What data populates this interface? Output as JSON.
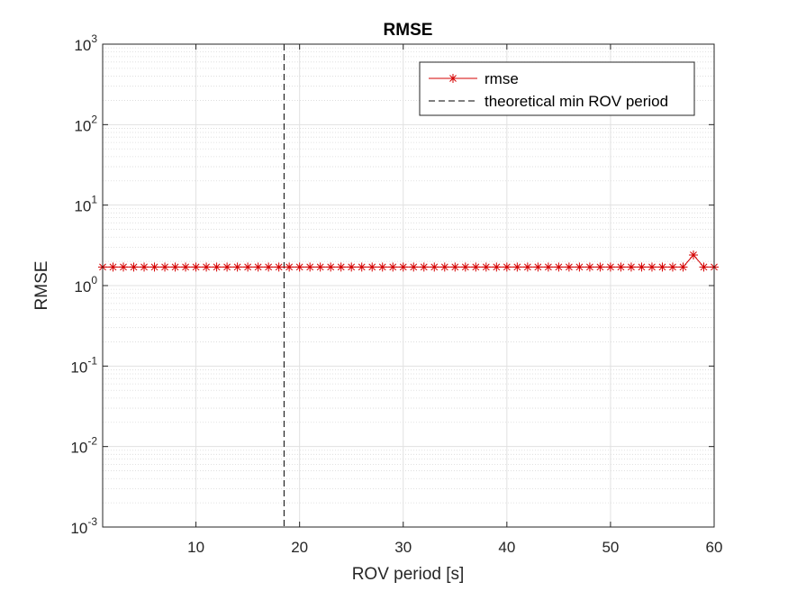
{
  "chart_data": {
    "type": "line",
    "title": "RMSE",
    "xlabel": "ROV period [s]",
    "ylabel": "RMSE",
    "xlim": [
      1,
      60
    ],
    "ylim": [
      0.001,
      1000
    ],
    "yscale": "log",
    "grid": true,
    "minor_grid": true,
    "legend_location": "top-right",
    "x_ticks": [
      10,
      20,
      30,
      40,
      50,
      60
    ],
    "y_ticks": [
      {
        "base": "10",
        "exp": "-3",
        "value": 0.001
      },
      {
        "base": "10",
        "exp": "-2",
        "value": 0.01
      },
      {
        "base": "10",
        "exp": "-1",
        "value": 0.1
      },
      {
        "base": "10",
        "exp": "0",
        "value": 1
      },
      {
        "base": "10",
        "exp": "1",
        "value": 10
      },
      {
        "base": "10",
        "exp": "2",
        "value": 100
      },
      {
        "base": "10",
        "exp": "3",
        "value": 1000
      }
    ],
    "series": [
      {
        "name": "rmse",
        "color": "#d40000",
        "style": "solid",
        "marker": "asterisk",
        "x": [
          1,
          2,
          3,
          4,
          5,
          6,
          7,
          8,
          9,
          10,
          11,
          12,
          13,
          14,
          15,
          16,
          17,
          18,
          19,
          20,
          21,
          22,
          23,
          24,
          25,
          26,
          27,
          28,
          29,
          30,
          31,
          32,
          33,
          34,
          35,
          36,
          37,
          38,
          39,
          40,
          41,
          42,
          43,
          44,
          45,
          46,
          47,
          48,
          49,
          50,
          51,
          52,
          53,
          54,
          55,
          56,
          57,
          58,
          59,
          60
        ],
        "y": [
          1.7,
          1.7,
          1.7,
          1.7,
          1.7,
          1.7,
          1.7,
          1.7,
          1.7,
          1.7,
          1.7,
          1.7,
          1.7,
          1.7,
          1.7,
          1.7,
          1.7,
          1.7,
          1.7,
          1.7,
          1.7,
          1.7,
          1.7,
          1.7,
          1.7,
          1.7,
          1.7,
          1.7,
          1.7,
          1.7,
          1.7,
          1.7,
          1.7,
          1.7,
          1.7,
          1.7,
          1.7,
          1.7,
          1.7,
          1.7,
          1.7,
          1.7,
          1.7,
          1.7,
          1.7,
          1.7,
          1.7,
          1.7,
          1.7,
          1.7,
          1.7,
          1.7,
          1.7,
          1.7,
          1.7,
          1.7,
          1.7,
          2.4,
          1.7,
          1.7
        ]
      },
      {
        "name": "theoretical min ROV period",
        "color": "#000000",
        "style": "dashed",
        "vertical_line_x": 18.5
      }
    ]
  }
}
